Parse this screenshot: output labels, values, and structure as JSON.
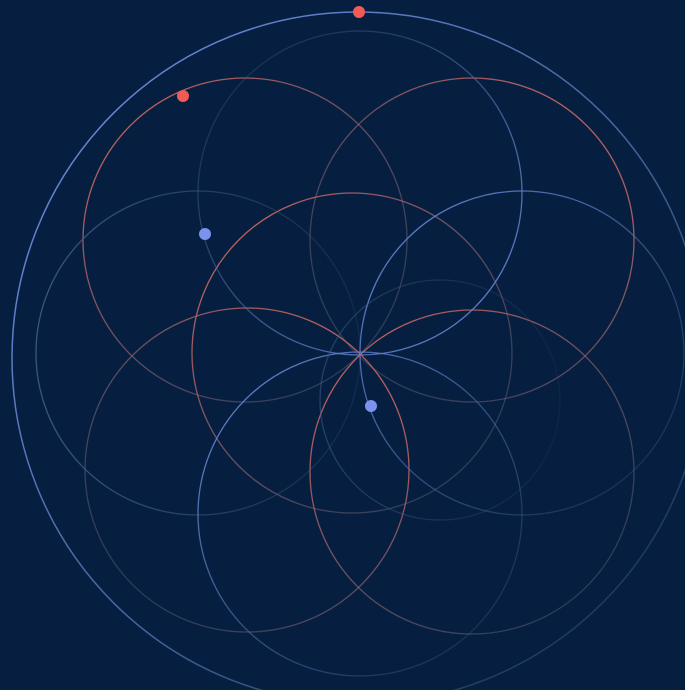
{
  "colors": {
    "background": "#061f40",
    "blue_stroke": "#6f8ee6",
    "red_stroke": "#e2685c",
    "faded_stroke": "#3d5a80",
    "blue_dot": "#7b93ef",
    "red_dot": "#f25a55"
  },
  "scene": {
    "description_kind": "animated-orbit-rosette",
    "red_ring_count": 6,
    "blue_ring_count": 6,
    "moving_dot_count": 4
  }
}
